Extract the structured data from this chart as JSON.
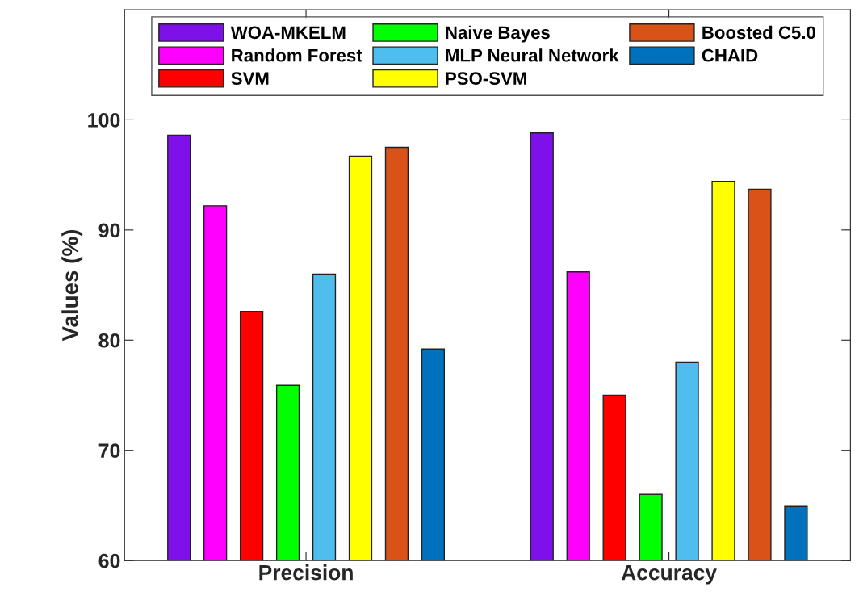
{
  "chart_data": {
    "type": "bar",
    "ylabel": "Values (%)",
    "categories": [
      "Precision",
      "Accuracy"
    ],
    "series": [
      {
        "name": "WOA-MKELM",
        "color": "#7e11ea",
        "values": [
          98.6,
          98.8
        ]
      },
      {
        "name": "Random Forest",
        "color": "#ff00ff",
        "values": [
          92.2,
          86.2
        ]
      },
      {
        "name": "SVM",
        "color": "#ff0000",
        "values": [
          82.6,
          75.0
        ]
      },
      {
        "name": "Naive Bayes",
        "color": "#00ff00",
        "values": [
          75.9,
          66.0
        ]
      },
      {
        "name": "MLP Neural Network",
        "color": "#4dbeee",
        "values": [
          86.0,
          78.0
        ]
      },
      {
        "name": "PSO-SVM",
        "color": "#ffff00",
        "values": [
          96.7,
          94.4
        ]
      },
      {
        "name": "Boosted C5.0",
        "color": "#d95319",
        "values": [
          97.5,
          93.7
        ]
      },
      {
        "name": "CHAID",
        "color": "#0072bd",
        "values": [
          79.2,
          64.9
        ]
      }
    ],
    "ylim": [
      60,
      110
    ],
    "yticks": [
      60,
      70,
      80,
      90,
      100
    ],
    "legend": "top",
    "grid": false
  }
}
